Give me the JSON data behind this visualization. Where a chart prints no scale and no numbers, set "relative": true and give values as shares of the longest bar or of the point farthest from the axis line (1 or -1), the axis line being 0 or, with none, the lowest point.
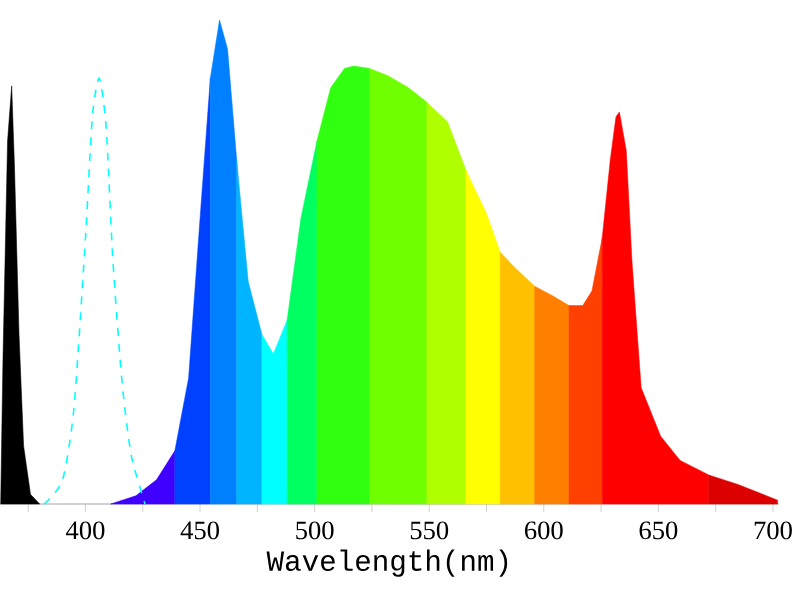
{
  "chart_data": {
    "type": "area",
    "xlabel": "Wavelength(nm)",
    "relative": true,
    "xlim": [
      362.7,
      702.5
    ],
    "xticks": [
      {
        "value": 375,
        "label": null
      },
      400,
      {
        "value": 425,
        "label": null
      },
      450,
      {
        "value": 475,
        "label": null
      },
      500,
      {
        "value": 525,
        "label": null
      },
      550,
      {
        "value": 575,
        "label": null
      },
      600,
      {
        "value": 625,
        "label": null
      },
      650,
      {
        "value": 675,
        "label": null
      },
      700
    ],
    "grid": false,
    "series": [
      {
        "color": "#000000",
        "x": [
          363,
          364,
          366,
          367.8,
          369,
          371,
          373,
          376,
          380
        ],
        "values": [
          0,
          0.3,
          0.75,
          0.864,
          0.7,
          0.35,
          0.12,
          0.02,
          0
        ]
      },
      {
        "type": "line",
        "line_style": "dashed",
        "color": "#00ffff",
        "x": [
          382,
          390,
          395,
          400,
          403,
          406,
          409,
          412,
          416,
          420,
          426
        ],
        "values": [
          0,
          0.05,
          0.2,
          0.55,
          0.8,
          0.88,
          0.78,
          0.5,
          0.25,
          0.1,
          0
        ]
      },
      {
        "color": "#4000ff",
        "x": [
          411,
          422,
          431,
          439
        ],
        "values": [
          0,
          0.017,
          0.05,
          0.11
        ]
      },
      {
        "color": "#0040ff",
        "x": [
          439,
          445,
          450,
          454.5
        ],
        "values": [
          0.11,
          0.26,
          0.59,
          0.88
        ]
      },
      {
        "color": "#0080ff",
        "x": [
          454.5,
          458.5,
          462,
          466
        ],
        "values": [
          0.88,
          1.0,
          0.94,
          0.71
        ]
      },
      {
        "color": "#00b4ff",
        "x": [
          466,
          471,
          477
        ],
        "values": [
          0.71,
          0.46,
          0.35
        ]
      },
      {
        "color": "#00ffff",
        "x": [
          477,
          482,
          488
        ],
        "values": [
          0.35,
          0.31,
          0.38
        ]
      },
      {
        "color": "#00ff60",
        "x": [
          488,
          494,
          501
        ],
        "values": [
          0.38,
          0.59,
          0.75
        ]
      },
      {
        "color": "#30ff10",
        "x": [
          501,
          507,
          513,
          517,
          524
        ],
        "values": [
          0.75,
          0.86,
          0.9,
          0.905,
          0.9
        ]
      },
      {
        "color": "#70ff00",
        "x": [
          524,
          532,
          541,
          549
        ],
        "values": [
          0.9,
          0.885,
          0.86,
          0.83
        ]
      },
      {
        "color": "#b0ff00",
        "x": [
          549,
          558,
          566
        ],
        "values": [
          0.83,
          0.79,
          0.69
        ]
      },
      {
        "color": "#ffff00",
        "x": [
          566,
          575,
          581
        ],
        "values": [
          0.69,
          0.6,
          0.52
        ]
      },
      {
        "color": "#ffc000",
        "x": [
          581,
          587,
          596
        ],
        "values": [
          0.52,
          0.49,
          0.45
        ]
      },
      {
        "color": "#ff8000",
        "x": [
          596,
          604,
          611
        ],
        "values": [
          0.45,
          0.43,
          0.41
        ]
      },
      {
        "color": "#ff4000",
        "x": [
          611,
          617,
          621,
          625.5
        ],
        "values": [
          0.41,
          0.41,
          0.44,
          0.55
        ]
      },
      {
        "color": "#ff0000",
        "x": [
          625.5,
          629,
          631.5,
          633,
          636,
          638.5,
          642.5,
          651,
          659.5,
          672
        ],
        "values": [
          0.55,
          0.71,
          0.8,
          0.81,
          0.73,
          0.5,
          0.24,
          0.14,
          0.09,
          0.06
        ]
      },
      {
        "color": "#dd0000",
        "x": [
          672,
          685,
          702
        ],
        "values": [
          0.06,
          0.04,
          0.008
        ]
      }
    ]
  }
}
